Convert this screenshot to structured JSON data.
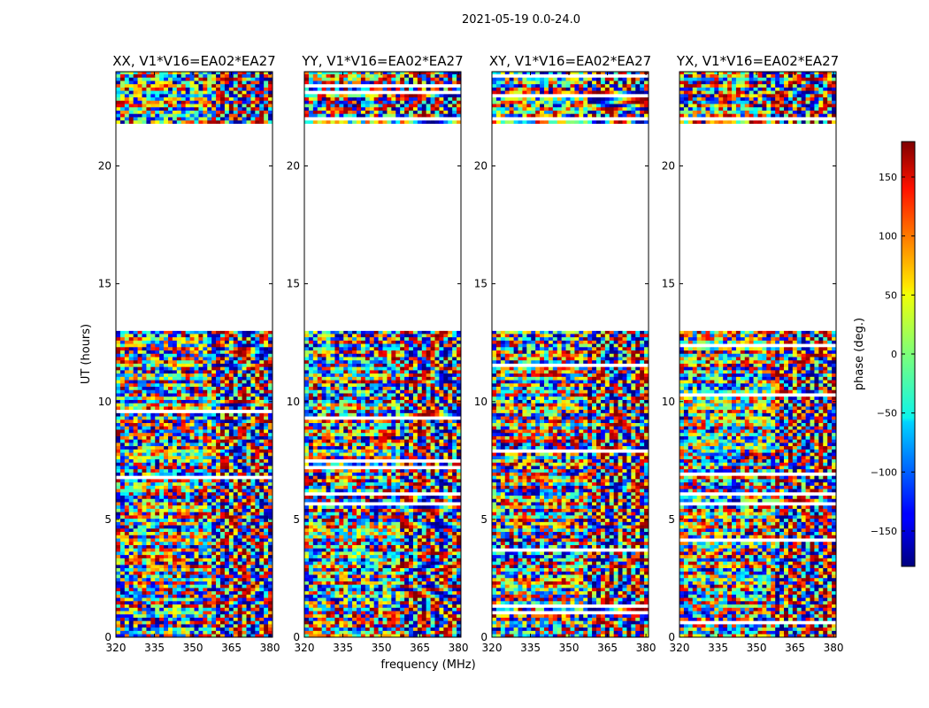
{
  "figure": {
    "suptitle": "2021-05-19 0.0-24.0",
    "xlabel": "frequency (MHz)",
    "ylabel": "UT (hours)"
  },
  "chart_data": {
    "type": "heatmap",
    "colormap": "jet",
    "x_range": [
      320,
      381
    ],
    "y_range": [
      0,
      24
    ],
    "x_ticks": [
      320,
      335,
      350,
      365,
      380
    ],
    "y_ticks": [
      0,
      5,
      10,
      15,
      20
    ],
    "panels": [
      {
        "title": "XX, V1*V16=EA02*EA27"
      },
      {
        "title": "YY, V1*V16=EA02*EA27"
      },
      {
        "title": "XY, V1*V16=EA02*EA27"
      },
      {
        "title": "YX, V1*V16=EA02*EA27"
      }
    ],
    "data_bands_hours": [
      [
        0.0,
        13.0
      ],
      [
        21.8,
        24.0
      ]
    ],
    "flagged_gap_hours": [
      [
        13.0,
        21.8
      ]
    ],
    "colorbar": {
      "label": "phase (deg.)",
      "range": [
        -180,
        180
      ],
      "ticks": [
        -150,
        -100,
        -50,
        0,
        50,
        100,
        150
      ],
      "tick_labels": [
        "−150",
        "−100",
        "−50",
        "0",
        "50",
        "100",
        "150"
      ]
    }
  }
}
